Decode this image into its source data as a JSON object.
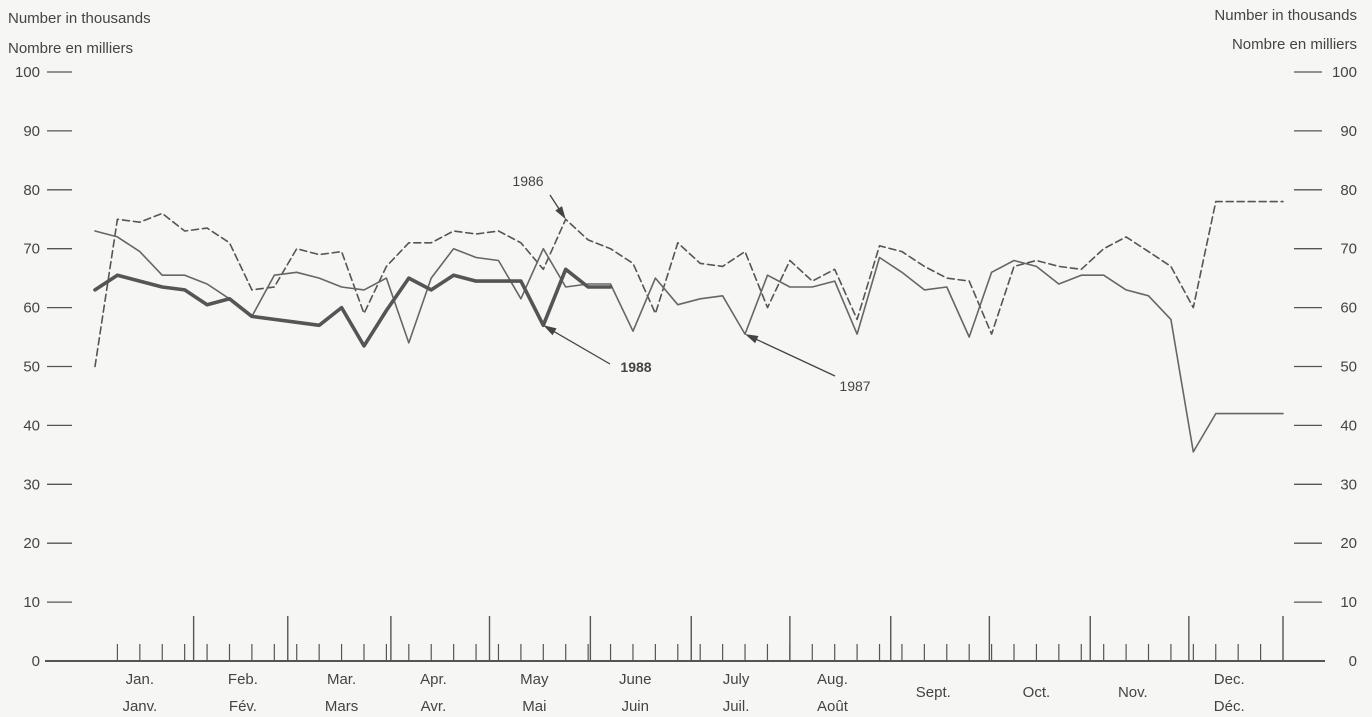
{
  "units": {
    "left_en": "Number in thousands",
    "left_fr": "Nombre en milliers",
    "right_en": "Number in thousands",
    "right_fr": "Nombre en milliers"
  },
  "colors": {
    "line_1986": "#555555",
    "line_1987": "#666666",
    "line_1988": "#555555",
    "axis": "#555555",
    "background": "#f6f6f4"
  },
  "chart_data": {
    "type": "line",
    "title": "",
    "xlabel": "",
    "ylabel": "Number in thousands / Nombre en milliers",
    "ylim": [
      0,
      100
    ],
    "yticks": [
      0,
      10,
      20,
      30,
      40,
      50,
      60,
      70,
      80,
      90,
      100
    ],
    "ytick_labels_left": [
      "0",
      "10",
      "20",
      "30",
      "40",
      "50",
      "60",
      "70",
      "80",
      "90",
      "100"
    ],
    "ytick_labels_right": [
      "0",
      "10",
      "20",
      "30",
      "40",
      "50",
      "60",
      "70",
      "80",
      "90",
      "100"
    ],
    "x_unit": "week",
    "xlim": [
      0,
      53
    ],
    "month_labels": [
      {
        "en": "Jan.",
        "fr": "Janv.",
        "week": 2.0
      },
      {
        "en": "Feb.",
        "fr": "Fév.",
        "week": 6.6
      },
      {
        "en": "Mar.",
        "fr": "Mars",
        "week": 11.0
      },
      {
        "en": "Apr.",
        "fr": "Avr.",
        "week": 15.1
      },
      {
        "en": "May",
        "fr": "Mai",
        "week": 19.6
      },
      {
        "en": "June",
        "fr": "Juin",
        "week": 24.1
      },
      {
        "en": "July",
        "fr": "Juil.",
        "week": 28.6
      },
      {
        "en": "Aug.",
        "fr": "Août",
        "week": 32.9
      },
      {
        "en": "Sept.",
        "fr": "",
        "week": 37.4
      },
      {
        "en": "Oct.",
        "fr": "",
        "week": 42.0
      },
      {
        "en": "Nov.",
        "fr": "",
        "week": 46.3
      },
      {
        "en": "Dec.",
        "fr": "Déc.",
        "week": 50.6
      }
    ],
    "month_boundaries": [
      4.4,
      8.6,
      13.2,
      17.6,
      22.1,
      26.6,
      31.0,
      35.5,
      39.9,
      44.4,
      48.8,
      53.0
    ],
    "series": [
      {
        "name": "1986",
        "style": "dashed",
        "x": [
          0,
          1,
          2,
          3,
          4,
          5,
          6,
          7,
          8,
          9,
          10,
          11,
          12,
          13,
          14,
          15,
          16,
          17,
          18,
          19,
          20,
          21,
          22,
          23,
          24,
          25,
          26,
          27,
          28,
          29,
          30,
          31,
          32,
          33,
          34,
          35,
          36,
          37,
          38,
          39,
          40,
          41,
          42,
          43,
          44,
          45,
          46,
          47,
          48,
          49,
          50,
          51,
          52,
          53
        ],
        "values": [
          50,
          75,
          74.5,
          76,
          73,
          73.5,
          71,
          63,
          63.5,
          70,
          69,
          69.5,
          59,
          67,
          71,
          71,
          73,
          72.5,
          73,
          71,
          66.5,
          75,
          71.5,
          70,
          67.5,
          59,
          71,
          67.5,
          67,
          69.5,
          60,
          68,
          64.5,
          66.5,
          58,
          70.5,
          69.5,
          67,
          65,
          64.5,
          55.5,
          67,
          68,
          67,
          66.5,
          70,
          72,
          69.5,
          67,
          60,
          78,
          78,
          78,
          78
        ]
      },
      {
        "name": "1987",
        "style": "solid",
        "x": [
          0,
          1,
          2,
          3,
          4,
          5,
          6,
          7,
          8,
          9,
          10,
          11,
          12,
          13,
          14,
          15,
          16,
          17,
          18,
          19,
          20,
          21,
          22,
          23,
          24,
          25,
          26,
          27,
          28,
          29,
          30,
          31,
          32,
          33,
          34,
          35,
          36,
          37,
          38,
          39,
          40,
          41,
          42,
          43,
          44,
          45,
          46,
          47,
          48,
          49,
          50,
          51,
          52,
          53
        ],
        "values": [
          73,
          72,
          69.5,
          65.5,
          65.5,
          64,
          61.5,
          58.5,
          65.5,
          66,
          65,
          63.5,
          63,
          65,
          54,
          65,
          70,
          68.5,
          68,
          61.5,
          70,
          63.5,
          64,
          64,
          56,
          65,
          60.5,
          61.5,
          62,
          55.5,
          65.5,
          63.5,
          63.5,
          64.5,
          55.5,
          68.5,
          66,
          63,
          63.5,
          55,
          66,
          68,
          67,
          64,
          65.5,
          65.5,
          63,
          62,
          58,
          35.5,
          42,
          42,
          42,
          42
        ]
      },
      {
        "name": "1988",
        "style": "bold",
        "x": [
          0,
          1,
          2,
          3,
          4,
          5,
          6,
          7,
          8,
          9,
          10,
          11,
          12,
          13,
          14,
          15,
          16,
          17,
          18,
          19,
          20,
          21,
          22,
          23
        ],
        "values": [
          63,
          65.5,
          64.5,
          63.5,
          63,
          60.5,
          61.5,
          58.5,
          58,
          57.5,
          57,
          60,
          53.5,
          59.5,
          65,
          63,
          65.5,
          64.5,
          64.5,
          64.5,
          57,
          66.5,
          63.5,
          63.5
        ]
      }
    ],
    "annotations": [
      {
        "text": "1986",
        "series": "1986",
        "point_week": 21
      },
      {
        "text": "1988",
        "series": "1988",
        "point_week": 20
      },
      {
        "text": "1987",
        "series": "1987",
        "point_week": 29
      }
    ]
  }
}
